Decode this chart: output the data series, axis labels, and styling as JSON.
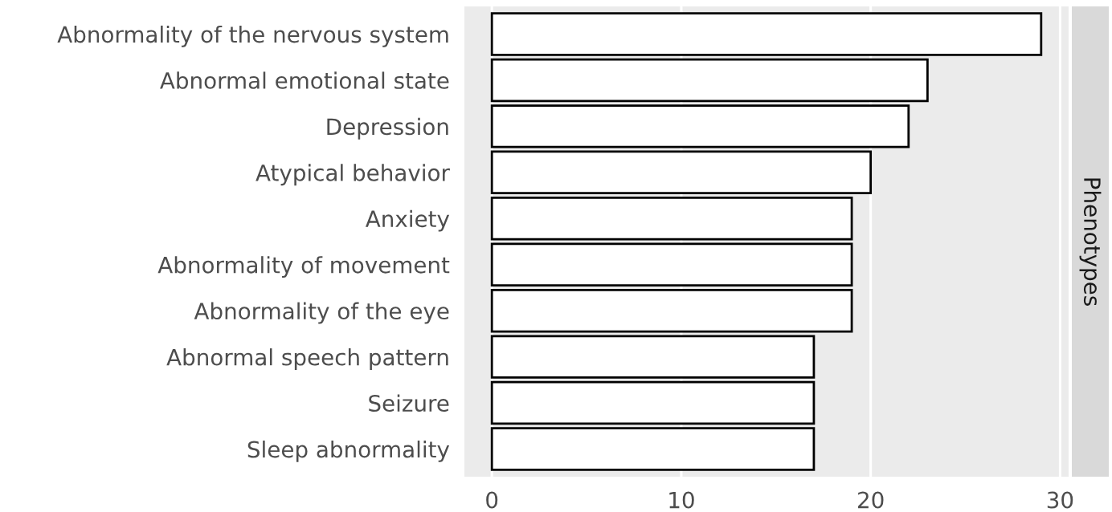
{
  "chart_data": {
    "type": "bar",
    "orientation": "horizontal",
    "categories": [
      "Abnormality of the nervous system",
      "Abnormal emotional state",
      "Depression",
      "Atypical behavior",
      "Anxiety",
      "Abnormality of movement",
      "Abnormality of the eye",
      "Abnormal speech pattern",
      "Seizure",
      "Sleep abnormality"
    ],
    "values": [
      29,
      23,
      22,
      20,
      19,
      19,
      19,
      17,
      17,
      17
    ],
    "color": "#ffffff",
    "xlim": [
      -1.45,
      30.45
    ],
    "xticks": [
      0,
      10,
      20,
      30
    ],
    "grid": "x",
    "legend": false,
    "annotations": [
      "Phenotypes"
    ]
  }
}
